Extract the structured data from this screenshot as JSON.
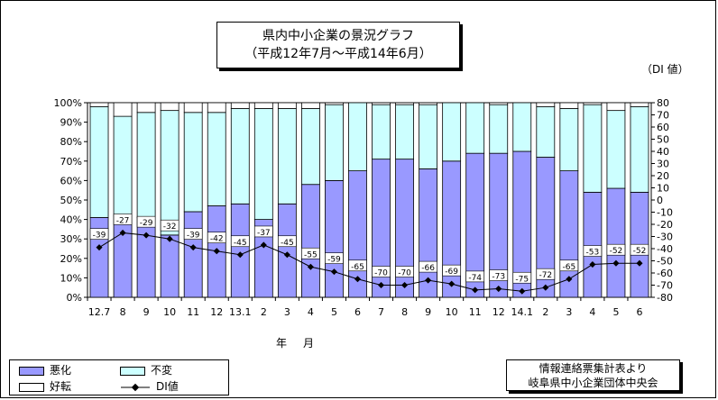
{
  "chart_data": {
    "type": "bar",
    "stacked": true,
    "title": "県内中小企業の景況グラフ",
    "subtitle": "（平成12年7月～平成14年6月）",
    "xlabel": "年　月",
    "ylabel_left": "",
    "ylabel_right": "（DI 値）",
    "categories": [
      "12.7",
      "8",
      "9",
      "10",
      "11",
      "12",
      "13.1",
      "2",
      "3",
      "4",
      "5",
      "6",
      "7",
      "8",
      "9",
      "10",
      "11",
      "12",
      "14.1",
      "2",
      "3",
      "4",
      "5",
      "6"
    ],
    "series": [
      {
        "name": "悪化",
        "color": "#9999ff",
        "values": [
          41,
          42,
          41,
          32,
          44,
          47,
          48,
          40,
          48,
          58,
          60,
          65,
          71,
          71,
          66,
          70,
          74,
          74,
          75,
          72,
          65,
          54,
          56,
          54
        ]
      },
      {
        "name": "不変",
        "color": "#ccffff",
        "values": [
          57,
          51,
          54,
          64,
          51,
          48,
          49,
          57,
          49,
          39,
          39,
          35,
          28,
          28,
          33,
          30,
          26,
          25,
          25,
          26,
          32,
          45,
          40,
          44
        ]
      },
      {
        "name": "好転",
        "color": "#ffffff",
        "values": [
          2,
          7,
          5,
          4,
          5,
          5,
          3,
          3,
          3,
          3,
          1,
          0,
          1,
          1,
          1,
          0,
          0,
          1,
          0,
          2,
          3,
          1,
          4,
          2
        ]
      }
    ],
    "di_series": {
      "name": "DI値",
      "values": [
        -39,
        -27,
        -29,
        -32,
        -39,
        -42,
        -45,
        -37,
        -45,
        -55,
        -59,
        -65,
        -70,
        -70,
        -66,
        -69,
        -74,
        -73,
        -75,
        -72,
        -65,
        -53,
        -52,
        -52
      ]
    },
    "left_axis": {
      "ylim": [
        0,
        100
      ],
      "ticks": [
        "0%",
        "10%",
        "20%",
        "30%",
        "40%",
        "50%",
        "60%",
        "70%",
        "80%",
        "90%",
        "100%"
      ]
    },
    "right_axis": {
      "ylim": [
        -80,
        80
      ],
      "ticks": [
        "80",
        "70",
        "60",
        "50",
        "40",
        "30",
        "20",
        "10",
        "0",
        "-10",
        "-20",
        "-30",
        "-40",
        "-50",
        "-60",
        "-70",
        "-80"
      ]
    },
    "grid": false,
    "legend_position": "bottom-left"
  },
  "legend": {
    "worse": "悪化",
    "same": "不変",
    "better": "好転",
    "di": "DI値"
  },
  "source": {
    "line1": "情報連絡票集計表より",
    "line2": "岐阜県中小企業団体中央会"
  }
}
